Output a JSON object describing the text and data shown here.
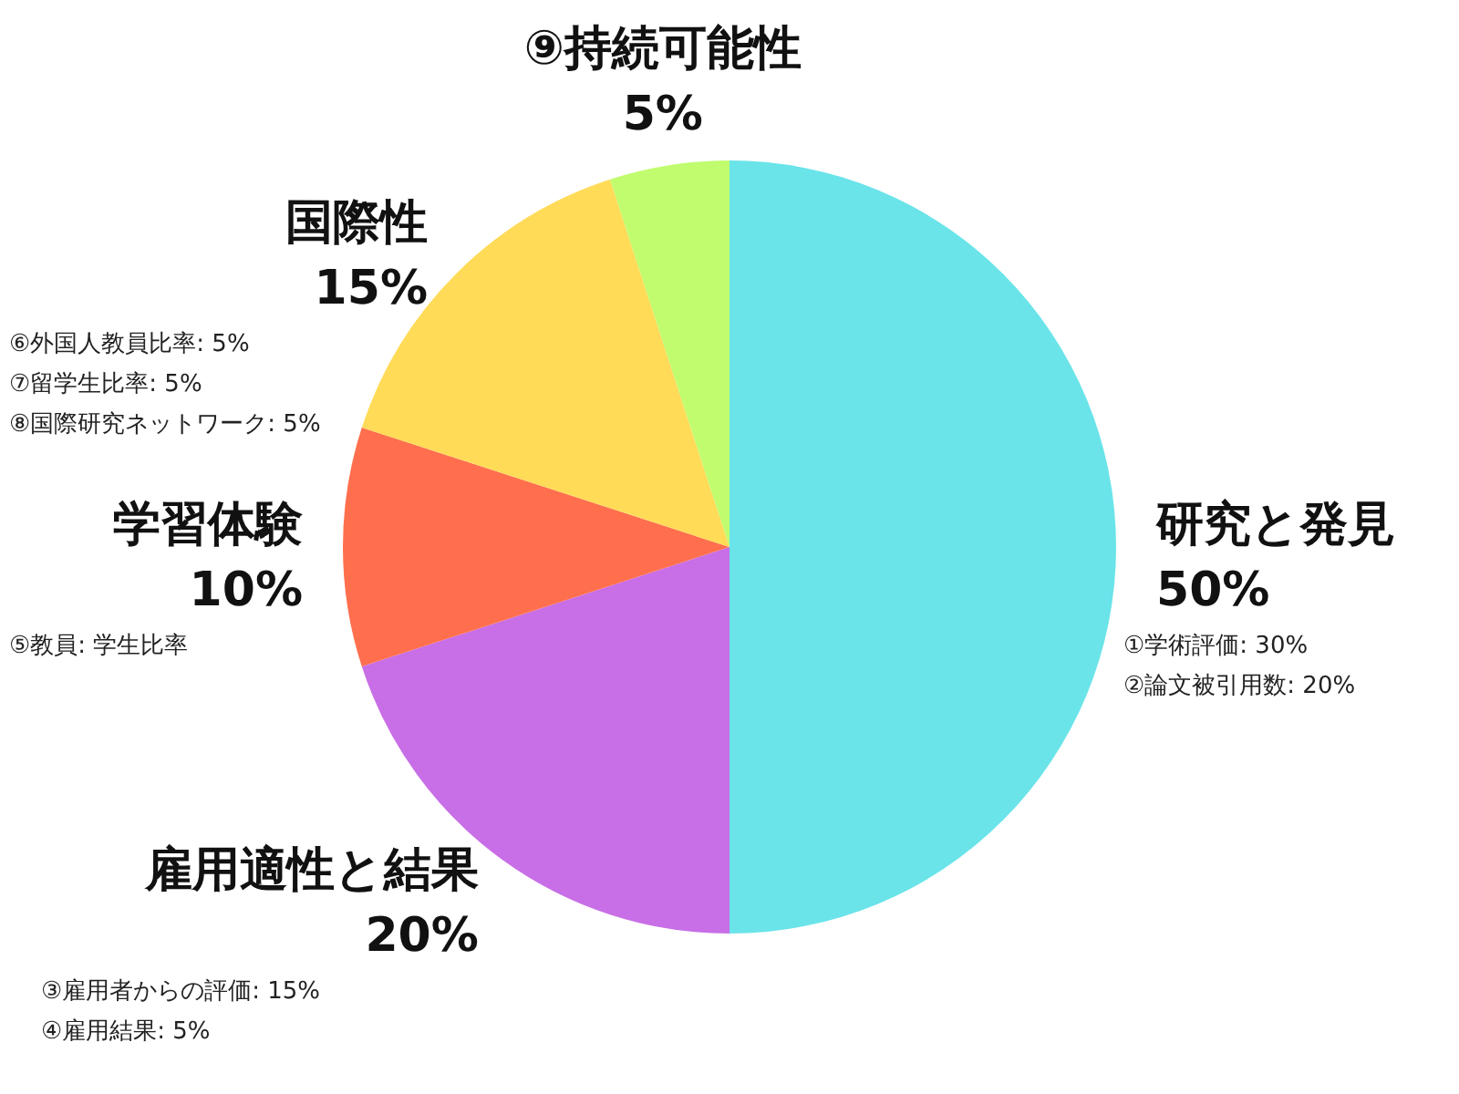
{
  "chart_data": {
    "type": "pie",
    "categories": [
      "研究と発見",
      "雇用適性と結果",
      "学習体験",
      "国際性",
      "⑨持続可能性"
    ],
    "values": [
      50,
      20,
      10,
      15,
      5
    ],
    "value_labels": [
      "50%",
      "20%",
      "10%",
      "15%",
      "5%"
    ],
    "colors": [
      "#6ae4e9",
      "#c86ee6",
      "#ff6f4e",
      "#ffdb58",
      "#c0fc6e"
    ],
    "annotations": [
      {
        "text": "①学術評価: 30%",
        "x": "研究と発見"
      },
      {
        "text": "②論文被引用数: 20%",
        "x": "研究と発見"
      },
      {
        "text": "③雇用者からの評価: 15%",
        "x": "雇用適性と結果"
      },
      {
        "text": "④雇用結果: 5%",
        "x": "雇用適性と結果"
      },
      {
        "text": "⑤教員:  学生比率",
        "x": "学習体験"
      },
      {
        "text": "⑥外国人教員比率: 5%",
        "x": "国際性"
      },
      {
        "text": "⑦留学生比率: 5%",
        "x": "国際性"
      },
      {
        "text": "⑧国際研究ネットワーク: 5%",
        "x": "国際性"
      }
    ]
  }
}
